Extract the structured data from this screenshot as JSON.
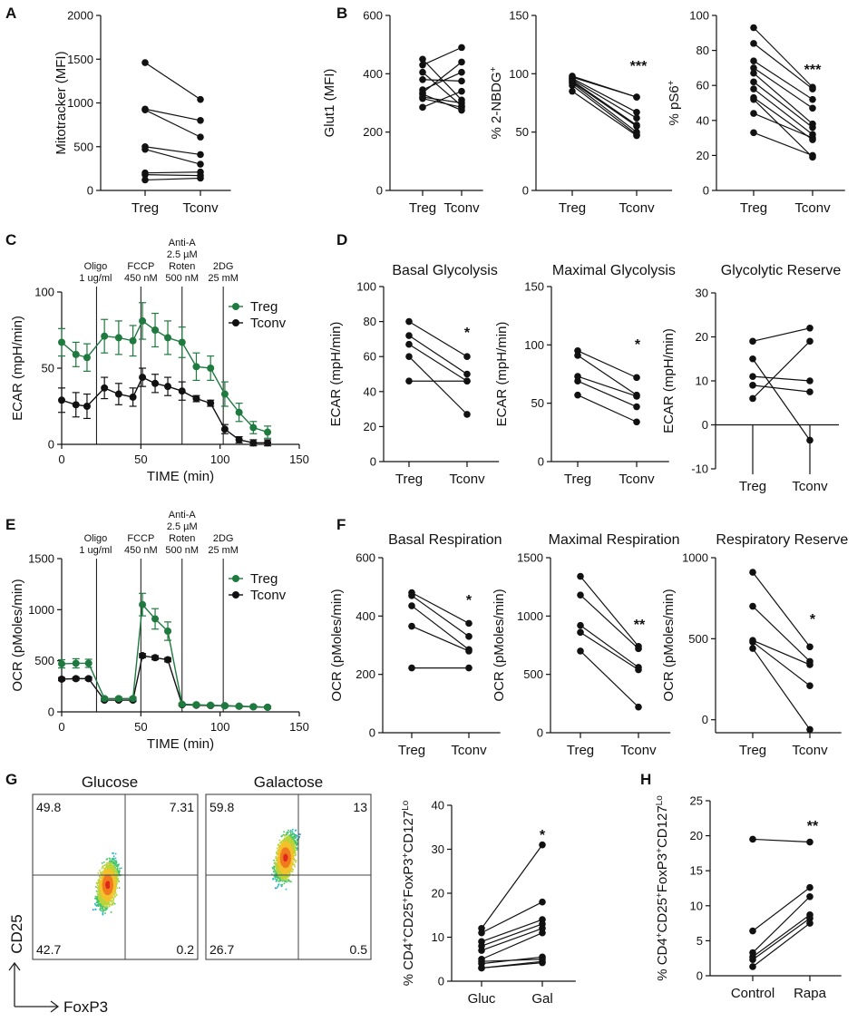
{
  "colors": {
    "treg": "#1e7a3e",
    "tconv": "#111111",
    "axis": "#111111"
  },
  "panel_labels": [
    "A",
    "B",
    "C",
    "D",
    "E",
    "F",
    "G",
    "H"
  ],
  "time_annotations": [
    {
      "lines": [
        "Oligo",
        "1 ug/ml"
      ]
    },
    {
      "lines": [
        "FCCP",
        "450 nM"
      ]
    },
    {
      "lines": [
        "Anti-A",
        "2.5 µM",
        "Roten",
        "500 nM"
      ]
    },
    {
      "lines": [
        "2DG",
        "25 mM"
      ]
    }
  ],
  "flow": {
    "axis_y": "CD25",
    "axis_x": "FoxP3",
    "plots": [
      {
        "title": "Glucose",
        "q_tl": "49.8",
        "q_tr": "7.31",
        "q_bl": "42.7",
        "q_br": "0.2"
      },
      {
        "title": "Galactose",
        "q_tl": "59.8",
        "q_tr": "13",
        "q_bl": "26.7",
        "q_br": "0.5"
      }
    ]
  },
  "chart_data": [
    {
      "id": "A",
      "type": "paired",
      "categories": [
        "Treg",
        "Tconv"
      ],
      "ylabel": "Mitotracker (MFI)",
      "ylim": [
        0,
        2000
      ],
      "yticks": [
        0,
        500,
        1000,
        1500,
        2000
      ],
      "sig": "",
      "pairs": [
        [
          1460,
          1040
        ],
        [
          930,
          800
        ],
        [
          920,
          610
        ],
        [
          500,
          410
        ],
        [
          470,
          300
        ],
        [
          200,
          210
        ],
        [
          180,
          170
        ],
        [
          120,
          140
        ]
      ]
    },
    {
      "id": "B1",
      "type": "paired",
      "categories": [
        "Treg",
        "Tconv"
      ],
      "ylabel": "Glut1 (MFI)",
      "ylim": [
        0,
        600
      ],
      "yticks": [
        0,
        200,
        400,
        600
      ],
      "sig": "",
      "pairs": [
        [
          450,
          310
        ],
        [
          430,
          490
        ],
        [
          405,
          290
        ],
        [
          380,
          375
        ],
        [
          345,
          405
        ],
        [
          335,
          440
        ],
        [
          330,
          275
        ],
        [
          320,
          300
        ],
        [
          315,
          285
        ],
        [
          285,
          340
        ]
      ]
    },
    {
      "id": "B2",
      "type": "paired",
      "categories": [
        "Treg",
        "Tconv"
      ],
      "ylabel": "% 2-NBDG+",
      "ylim": [
        0,
        150
      ],
      "yticks": [
        0,
        50,
        100,
        150
      ],
      "sig": "***",
      "pairs": [
        [
          98,
          80
        ],
        [
          97,
          80
        ],
        [
          96,
          67
        ],
        [
          95,
          62
        ],
        [
          94,
          56
        ],
        [
          93,
          55
        ],
        [
          92,
          50
        ],
        [
          90,
          48
        ],
        [
          85,
          47
        ]
      ]
    },
    {
      "id": "B3",
      "type": "paired",
      "categories": [
        "Treg",
        "Tconv"
      ],
      "ylabel": "% pS6+",
      "ylim": [
        0,
        100
      ],
      "yticks": [
        0,
        20,
        40,
        60,
        80,
        100
      ],
      "sig": "***",
      "pairs": [
        [
          93,
          59
        ],
        [
          84,
          58
        ],
        [
          74,
          52
        ],
        [
          70,
          47
        ],
        [
          67,
          38
        ],
        [
          62,
          36
        ],
        [
          58,
          32
        ],
        [
          53,
          29
        ],
        [
          44,
          30
        ],
        [
          33,
          20
        ],
        [
          52,
          19
        ]
      ]
    },
    {
      "id": "C",
      "type": "line",
      "xlabel": "TIME (min)",
      "ylabel": "ECAR (mpH/min)",
      "xlim": [
        0,
        150
      ],
      "xticks": [
        0,
        50,
        100,
        150
      ],
      "ylim": [
        0,
        100
      ],
      "yticks": [
        0,
        50,
        100
      ],
      "vlines": [
        22,
        50,
        76,
        102
      ],
      "series": [
        {
          "name": "Treg",
          "x": [
            0,
            9,
            16,
            27,
            36,
            45,
            51,
            59,
            67,
            76,
            85,
            94,
            103,
            112,
            121,
            130
          ],
          "y": [
            67,
            59,
            57,
            71,
            70,
            68,
            81,
            75,
            70,
            67,
            51,
            50,
            33,
            21,
            11,
            8
          ],
          "err": [
            9,
            8,
            9,
            11,
            11,
            10,
            12,
            11,
            11,
            10,
            9,
            8,
            8,
            6,
            4,
            4
          ]
        },
        {
          "name": "Tconv",
          "x": [
            0,
            9,
            16,
            27,
            36,
            45,
            51,
            59,
            67,
            76,
            85,
            94,
            103,
            112,
            121,
            130
          ],
          "y": [
            29,
            26,
            25,
            37,
            33,
            31,
            44,
            40,
            38,
            35,
            30,
            27,
            10,
            3,
            1,
            1
          ],
          "err": [
            8,
            8,
            8,
            7,
            7,
            6,
            6,
            6,
            6,
            6,
            2,
            2,
            3,
            2,
            2,
            2
          ]
        }
      ]
    },
    {
      "id": "D1",
      "type": "paired",
      "title": "Basal Glycolysis",
      "categories": [
        "Treg",
        "Tconv"
      ],
      "ylabel": "ECAR (mpH/min)",
      "ylim": [
        0,
        100
      ],
      "yticks": [
        0,
        20,
        40,
        60,
        80,
        100
      ],
      "sig": "*",
      "pairs": [
        [
          80,
          60
        ],
        [
          72,
          50
        ],
        [
          67,
          46
        ],
        [
          60,
          27
        ],
        [
          46,
          46
        ]
      ]
    },
    {
      "id": "D2",
      "type": "paired",
      "title": "Maximal Glycolysis",
      "categories": [
        "Treg",
        "Tconv"
      ],
      "ylabel": "ECAR (mpH/min)",
      "ylim": [
        0,
        150
      ],
      "yticks": [
        0,
        50,
        100,
        150
      ],
      "sig": "*",
      "pairs": [
        [
          95,
          72
        ],
        [
          91,
          57
        ],
        [
          73,
          56
        ],
        [
          69,
          47
        ],
        [
          57,
          34
        ]
      ]
    },
    {
      "id": "D3",
      "type": "paired",
      "title": "Glycolytic Reserve",
      "categories": [
        "Treg",
        "Tconv"
      ],
      "ylabel": "ECAR (mpH/min)",
      "ylim": [
        -10,
        30
      ],
      "yticks": [
        -10,
        0,
        10,
        20,
        30
      ],
      "zero_axis": true,
      "sig": "",
      "pairs": [
        [
          19,
          22
        ],
        [
          15,
          -3.5
        ],
        [
          11,
          10
        ],
        [
          9,
          7.5
        ],
        [
          6,
          19
        ]
      ]
    },
    {
      "id": "E",
      "type": "line",
      "xlabel": "TIME (min)",
      "ylabel": "OCR (pMoles/min)",
      "xlim": [
        0,
        150
      ],
      "xticks": [
        0,
        50,
        100,
        150
      ],
      "ylim": [
        0,
        1500
      ],
      "yticks": [
        0,
        500,
        1000,
        1500
      ],
      "vlines": [
        22,
        50,
        76,
        102
      ],
      "series": [
        {
          "name": "Treg",
          "x": [
            0,
            9,
            17,
            27,
            36,
            45,
            51,
            59,
            67,
            76,
            85,
            94,
            103,
            112,
            121,
            130
          ],
          "y": [
            470,
            475,
            475,
            130,
            130,
            130,
            1050,
            910,
            790,
            75,
            70,
            65,
            60,
            55,
            50,
            45
          ],
          "err": [
            40,
            45,
            40,
            15,
            15,
            15,
            110,
            100,
            90,
            10,
            10,
            10,
            10,
            10,
            10,
            10
          ]
        },
        {
          "name": "Tconv",
          "x": [
            0,
            9,
            17,
            27,
            36,
            45,
            51,
            59,
            67,
            76,
            85,
            94,
            103,
            112,
            121,
            130
          ],
          "y": [
            320,
            325,
            325,
            115,
            115,
            115,
            550,
            530,
            510,
            70,
            65,
            62,
            60,
            55,
            50,
            45
          ],
          "err": [
            15,
            15,
            15,
            10,
            10,
            10,
            20,
            20,
            20,
            10,
            10,
            10,
            10,
            10,
            10,
            10
          ]
        }
      ]
    },
    {
      "id": "F1",
      "type": "paired",
      "title": "Basal Respiration",
      "categories": [
        "Treg",
        "Tconv"
      ],
      "ylabel": "OCR (pMoles/min)",
      "ylim": [
        0,
        600
      ],
      "yticks": [
        0,
        200,
        400,
        600
      ],
      "sig": "*",
      "pairs": [
        [
          480,
          375
        ],
        [
          470,
          330
        ],
        [
          435,
          285
        ],
        [
          365,
          280
        ],
        [
          222,
          222
        ]
      ]
    },
    {
      "id": "F2",
      "type": "paired",
      "title": "Maximal Respiration",
      "categories": [
        "Treg",
        "Tconv"
      ],
      "ylabel": "OCR (pMoles/min)",
      "ylim": [
        0,
        1500
      ],
      "yticks": [
        0,
        500,
        1000,
        1500
      ],
      "sig": "**",
      "pairs": [
        [
          1340,
          740
        ],
        [
          1180,
          720
        ],
        [
          920,
          560
        ],
        [
          860,
          540
        ],
        [
          700,
          220
        ]
      ]
    },
    {
      "id": "F3",
      "type": "paired",
      "title": "Respiratory Reserve",
      "categories": [
        "Treg",
        "Tconv"
      ],
      "ylabel": "OCR (pMoles/min)",
      "ylim": [
        -80,
        1000
      ],
      "yticks": [
        0,
        500,
        1000
      ],
      "sig": "*",
      "pairs": [
        [
          910,
          450
        ],
        [
          700,
          360
        ],
        [
          490,
          340
        ],
        [
          480,
          210
        ],
        [
          440,
          -60
        ]
      ]
    },
    {
      "id": "G",
      "type": "paired",
      "categories": [
        "Gluc",
        "Gal"
      ],
      "ylabel": "% CD4+CD25+FoxP3+CD127Lo",
      "ylim": [
        0,
        40
      ],
      "yticks": [
        0,
        10,
        20,
        30,
        40
      ],
      "sig": "*",
      "pairs": [
        [
          12,
          31
        ],
        [
          11,
          18
        ],
        [
          9,
          14
        ],
        [
          8,
          13
        ],
        [
          7,
          12
        ],
        [
          5,
          11
        ],
        [
          4,
          5.5
        ],
        [
          3,
          4.5
        ],
        [
          3,
          4.2
        ],
        [
          4.5,
          5
        ]
      ]
    },
    {
      "id": "H",
      "type": "paired",
      "categories": [
        "Control",
        "Rapa"
      ],
      "ylabel": "% CD4+CD25+FoxP3+CD127Lo",
      "ylim": [
        0,
        25
      ],
      "yticks": [
        0,
        5,
        10,
        15,
        20,
        25
      ],
      "sig": "**",
      "pairs": [
        [
          19.5,
          19.1
        ],
        [
          6.4,
          12.6
        ],
        [
          3.3,
          11.3
        ],
        [
          2.7,
          8.7
        ],
        [
          2.3,
          8.2
        ],
        [
          1.3,
          7.5
        ]
      ]
    }
  ]
}
